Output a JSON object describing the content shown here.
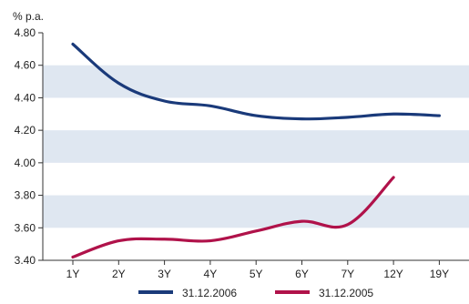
{
  "chart_data": {
    "type": "line",
    "unit_label": "% p.a.",
    "categories": [
      "1Y",
      "2Y",
      "3Y",
      "4Y",
      "5Y",
      "6Y",
      "7Y",
      "12Y",
      "19Y"
    ],
    "ylim": [
      3.4,
      4.8
    ],
    "yticks": [
      "3.40",
      "3.60",
      "3.80",
      "4.00",
      "4.20",
      "4.40",
      "4.60",
      "4.80"
    ],
    "grid": false,
    "banded_background": true,
    "band_color": "#dfe7f1",
    "legend_position": "bottom",
    "series": [
      {
        "name": "31.12.2006",
        "color": "#1a3a7a",
        "values": [
          4.73,
          4.49,
          4.38,
          4.35,
          4.29,
          4.27,
          4.28,
          4.3,
          4.29
        ]
      },
      {
        "name": "31.12.2005",
        "color": "#b0124a",
        "values": [
          3.42,
          3.52,
          3.53,
          3.52,
          3.58,
          3.64,
          3.62,
          3.91,
          null
        ]
      }
    ]
  }
}
